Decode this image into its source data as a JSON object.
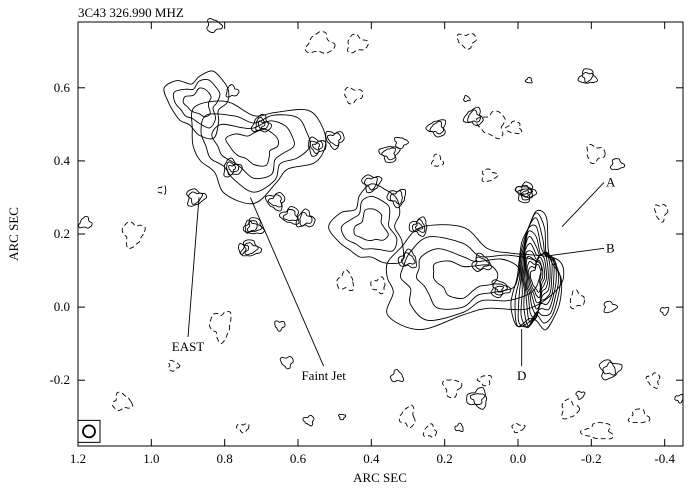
{
  "chart_data": {
    "type": "contour",
    "title": "3C43  326.990 MHZ",
    "xlabel": "ARC SEC",
    "ylabel": "ARC SEC",
    "xlim": [
      1.2,
      -0.45
    ],
    "ylim": [
      -0.38,
      0.78
    ],
    "x_ticks": [
      1.2,
      1.0,
      0.8,
      0.6,
      0.4,
      0.2,
      0.0,
      -0.2,
      -0.4
    ],
    "x_tick_labels": [
      "1.2",
      "1.0",
      "0.8",
      "0.6",
      "0.4",
      "0.2",
      "0.0",
      "-0.2",
      "-0.4"
    ],
    "y_ticks": [
      0.6,
      0.4,
      0.2,
      0.0,
      -0.2
    ],
    "y_tick_labels": [
      "0.6",
      "0.4",
      "0.2",
      "0.0",
      "-0.2"
    ],
    "contour_style": "solid = positive levels, dashed = negative levels",
    "features": [
      {
        "name": "main-core-knot",
        "x": -0.05,
        "y": 0.08,
        "rx": 0.06,
        "ry": 0.15,
        "levels": 12
      },
      {
        "name": "jet-body",
        "x": 0.15,
        "y": 0.08,
        "rx": 0.24,
        "ry": 0.12,
        "levels": 4
      },
      {
        "name": "east-lobe",
        "x": 0.72,
        "y": 0.44,
        "rx": 0.18,
        "ry": 0.12,
        "levels": 4
      },
      {
        "name": "upper-east-lobe",
        "x": 0.87,
        "y": 0.56,
        "rx": 0.08,
        "ry": 0.08,
        "levels": 3
      },
      {
        "name": "faint-jet-knots",
        "x": 0.4,
        "y": 0.22,
        "rx": 0.09,
        "ry": 0.1,
        "levels": 3
      }
    ],
    "annotations": [
      {
        "label": "A",
        "x": -0.24,
        "y": 0.33,
        "target": [
          -0.12,
          0.22
        ]
      },
      {
        "label": "B",
        "x": -0.24,
        "y": 0.15,
        "target": [
          -0.08,
          0.14
        ]
      },
      {
        "label": "D",
        "x": -0.01,
        "y": -0.2,
        "target": [
          -0.01,
          -0.06
        ]
      },
      {
        "label": "EAST",
        "x": 0.9,
        "y": -0.12,
        "target": [
          0.87,
          0.3
        ]
      },
      {
        "label": "Faint Jet",
        "x": 0.53,
        "y": -0.2,
        "target": [
          0.73,
          0.3
        ]
      }
    ],
    "beam_marker": {
      "x": 1.17,
      "y": -0.34
    },
    "grid": false
  }
}
